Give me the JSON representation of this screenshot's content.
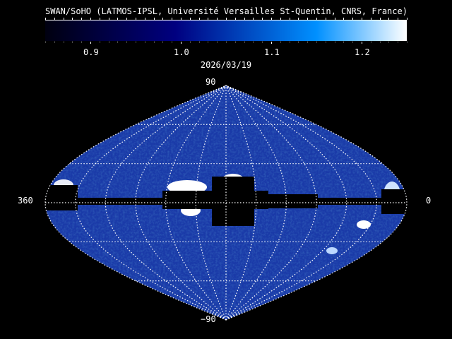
{
  "title": "SWAN/SoHO (LATMOS-IPSL, Université Versailles St-Quentin, CNRS, France)",
  "colorbar": {
    "range": [
      0.85,
      1.25
    ],
    "tick_labels": [
      "0.9",
      "1.0",
      "1.1",
      "1.2"
    ],
    "tick_values": [
      0.9,
      1.0,
      1.1,
      1.2
    ],
    "colors": [
      "#000010",
      "#000080",
      "#0090ff",
      "#ffffff"
    ]
  },
  "date": "2026/03/19",
  "map": {
    "projection": "sinusoidal",
    "label_top": "90",
    "label_bottom": "−90",
    "label_left": "360",
    "label_right": "0",
    "background_color": "#1a3aa8",
    "grid_color": "#ffffff"
  }
}
